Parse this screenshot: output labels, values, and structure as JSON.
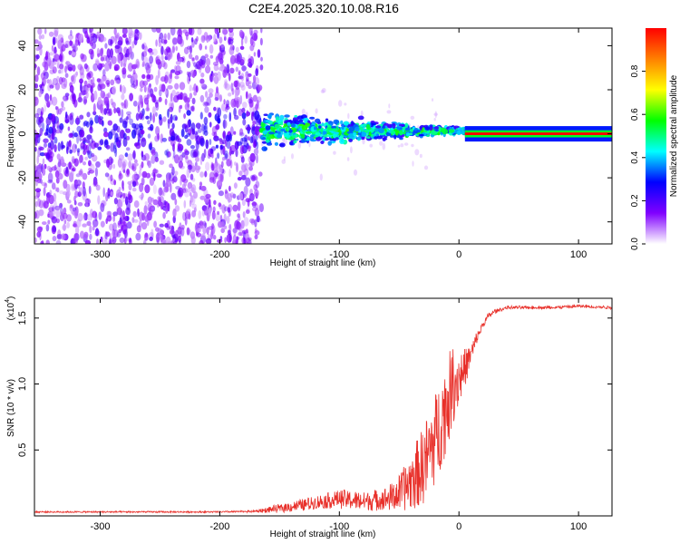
{
  "title": "C2E4.2025.320.10.08.R16",
  "chart_data": [
    {
      "type": "heatmap",
      "title": "C2E4.2025.320.10.08.R16",
      "xlabel": "Height of straight line (km)",
      "ylabel": "Frequency (Hz)",
      "xlim": [
        -355,
        128
      ],
      "ylim": [
        -50,
        48
      ],
      "x_ticks": [
        "-300",
        "-200",
        "-100",
        "0",
        "100"
      ],
      "x_tick_values": [
        -300,
        -200,
        -100,
        0,
        100
      ],
      "y_ticks": [
        "-40",
        "-20",
        "0",
        "20",
        "40"
      ],
      "y_tick_values": [
        -40,
        -20,
        0,
        20,
        40
      ],
      "description_regions": [
        {
          "x_range": [
            -355,
            -165
          ],
          "content": "broadband noise (low amplitude, purple)"
        },
        {
          "x_range": [
            -165,
            5
          ],
          "content": "signal near 0 Hz, spread ±10 Hz narrowing toward 0 km (amplitude ~0.3-0.6)"
        },
        {
          "x_range": [
            5,
            128
          ],
          "content": "narrow carrier line at 0 Hz (amplitude ~1.0)"
        }
      ],
      "colorbar": {
        "label": "Normalized spectral amplitude",
        "range": [
          0,
          1
        ],
        "ticks": [
          "0.0",
          "0.2",
          "0.4",
          "0.6",
          "0.8"
        ],
        "tick_values": [
          0.0,
          0.2,
          0.4,
          0.6,
          0.8
        ],
        "colors": [
          "#ffffff",
          "#8000ff",
          "#0000ff",
          "#00ffff",
          "#00ff00",
          "#ffff00",
          "#ff8000",
          "#ff0000"
        ]
      }
    },
    {
      "type": "line",
      "xlabel": "Height of straight line (km)",
      "ylabel": "SNR (10 * v/v)",
      "y_multiplier_base": "(x10",
      "y_multiplier_exp": "4",
      "y_multiplier_close": ")",
      "xlim": [
        -355,
        128
      ],
      "ylim": [
        0,
        1.65
      ],
      "x_ticks": [
        "-300",
        "-200",
        "-100",
        "0",
        "100"
      ],
      "x_tick_values": [
        -300,
        -200,
        -100,
        0,
        100
      ],
      "y_ticks": [
        "0.5",
        "1.0",
        "1.5"
      ],
      "y_tick_values": [
        0.5,
        1.0,
        1.5
      ],
      "line_color": "#e8302a",
      "series": [
        {
          "name": "SNR",
          "x": [
            -355,
            -300,
            -250,
            -200,
            -170,
            -160,
            -140,
            -120,
            -100,
            -80,
            -60,
            -50,
            -40,
            -30,
            -20,
            -10,
            -5,
            0,
            5,
            10,
            15,
            20,
            25,
            30,
            40,
            50,
            60,
            80,
            100,
            128
          ],
          "y": [
            0.03,
            0.03,
            0.03,
            0.03,
            0.035,
            0.045,
            0.07,
            0.1,
            0.13,
            0.11,
            0.13,
            0.17,
            0.26,
            0.38,
            0.58,
            0.85,
            1.0,
            1.05,
            1.12,
            1.22,
            1.35,
            1.45,
            1.52,
            1.55,
            1.58,
            1.58,
            1.58,
            1.58,
            1.59,
            1.58
          ],
          "noise_amplitude": [
            0.0,
            0.0,
            0.0,
            0.0,
            0.005,
            0.02,
            0.04,
            0.05,
            0.07,
            0.07,
            0.09,
            0.14,
            0.22,
            0.3,
            0.35,
            0.35,
            0.3,
            0.22,
            0.15,
            0.08,
            0.05,
            0.03,
            0.02,
            0.015,
            0.01,
            0.01,
            0.01,
            0.01,
            0.01,
            0.01
          ]
        }
      ]
    }
  ]
}
